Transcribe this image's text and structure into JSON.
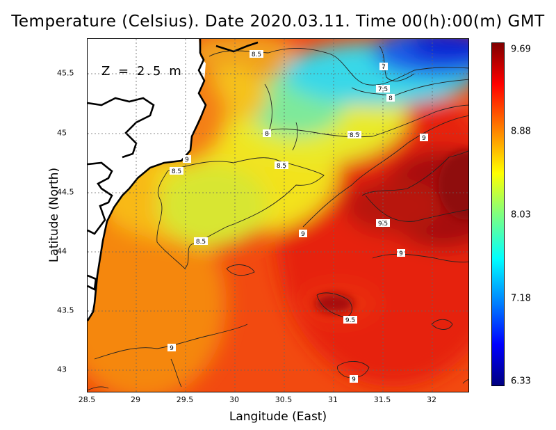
{
  "title": "Temperature (Celsius). Date 2020.03.11. Time 00(h):00(m) GMT",
  "xlabel": "Langitude (East)",
  "ylabel": "Latitude (North)",
  "depth_label": "Z = 2.5 m",
  "x_ticks": [
    "28.5",
    "29",
    "29.5",
    "30",
    "30.5",
    "31",
    "31.5",
    "32"
  ],
  "y_ticks": [
    "45.5",
    "45",
    "44.5",
    "44",
    "43.5",
    "43"
  ],
  "colorbar": {
    "ticks": [
      "9.69",
      "8.88",
      "8.03",
      "7.18",
      "6.33"
    ],
    "min": 6.33,
    "max": 9.69
  },
  "contour_labels": [
    "8.5",
    "7",
    "7.5",
    "8",
    "8",
    "8.5",
    "9",
    "8.5",
    "8.5",
    "9",
    "8.5",
    "9.5",
    "9",
    "9.5",
    "9",
    "9",
    "9"
  ],
  "colors": {
    "warm": "#e83a0a",
    "cold": "#0a2bd6",
    "land": "#ffffff",
    "coast": "#000000"
  }
}
